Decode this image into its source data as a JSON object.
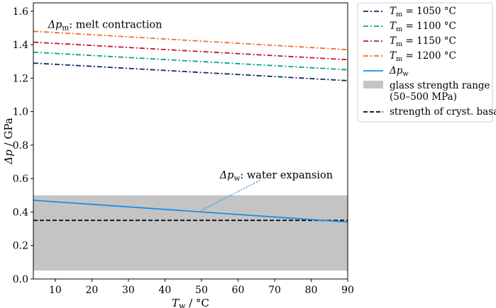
{
  "chart_data": {
    "type": "line",
    "xlabel": "T_w / °C",
    "ylabel": "Δp / GPa",
    "xlim": [
      4,
      90
    ],
    "ylim": [
      0.0,
      1.65
    ],
    "xticks": [
      10,
      20,
      30,
      40,
      50,
      60,
      70,
      80,
      90
    ],
    "yticks": [
      0.0,
      0.2,
      0.4,
      0.6,
      0.8,
      1.0,
      1.2,
      1.4,
      1.6
    ],
    "series": [
      {
        "name": "T_m = 1050 °C",
        "legend_main": "T",
        "legend_sub": "m",
        "legend_rest": " = 1050 °C",
        "style": "dashdot",
        "color": "#0b2a63",
        "x": [
          4,
          90
        ],
        "y": [
          1.29,
          1.185
        ]
      },
      {
        "name": "T_m = 1100 °C",
        "legend_main": "T",
        "legend_sub": "m",
        "legend_rest": " = 1100 °C",
        "style": "dashdot",
        "color": "#00a38c",
        "x": [
          4,
          90
        ],
        "y": [
          1.355,
          1.25
        ]
      },
      {
        "name": "T_m = 1150 °C",
        "legend_main": "T",
        "legend_sub": "m",
        "legend_rest": " = 1150 °C",
        "style": "dashdot",
        "color": "#c21232",
        "x": [
          4,
          90
        ],
        "y": [
          1.415,
          1.31
        ]
      },
      {
        "name": "T_m = 1200 °C",
        "legend_main": "T",
        "legend_sub": "m",
        "legend_rest": " = 1200 °C",
        "style": "dashdot",
        "color": "#f26b2a",
        "x": [
          4,
          90
        ],
        "y": [
          1.48,
          1.37
        ]
      },
      {
        "name": "Δp_w",
        "legend_main": "Δp",
        "legend_sub": "w",
        "legend_rest": "",
        "style": "solid",
        "color": "#1a8fe3",
        "x": [
          4,
          90
        ],
        "y": [
          0.47,
          0.34
        ]
      }
    ],
    "band": {
      "name": "glass strength range (50–500 MPa)",
      "label_line1": "glass strength range",
      "label_line2": "(50–500 MPa)",
      "y0": 0.05,
      "y1": 0.5,
      "color": "#c4c4c4"
    },
    "hline": {
      "name": "strength of cryst. basalt",
      "label": "strength of cryst. basalt",
      "y": 0.35,
      "color": "#000000"
    },
    "annotations": [
      {
        "id": "melt",
        "text_main": "Δp",
        "text_sub": "m",
        "text_rest": ": melt contraction",
        "x": 8,
        "y": 1.5
      },
      {
        "id": "water",
        "text_main": "Δp",
        "text_sub": "w",
        "text_rest": ": water expansion",
        "x": 55,
        "y": 0.6,
        "arrow_from": [
          66,
          0.59
        ],
        "arrow_to": [
          50,
          0.41
        ]
      }
    ],
    "legend_position": "outside-right-top"
  }
}
